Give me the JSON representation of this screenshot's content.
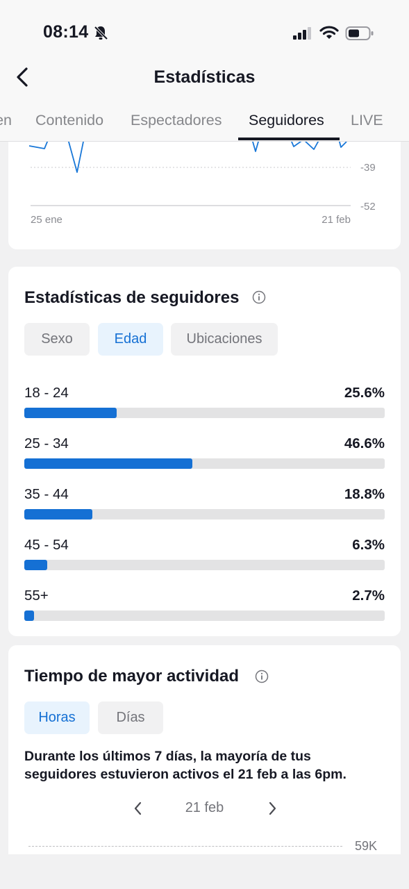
{
  "status_bar": {
    "time": "08:14"
  },
  "header": {
    "title": "Estadísticas"
  },
  "tabs": [
    {
      "label": "Resumen"
    },
    {
      "label": "Contenido"
    },
    {
      "label": "Espectadores"
    },
    {
      "label": "Seguidores",
      "active": true
    },
    {
      "label": "LIVE"
    }
  ],
  "trend_chart": {
    "y_ticks": [
      "-39",
      "-52"
    ],
    "x_start": "25 ene",
    "x_end": "21 feb"
  },
  "followers": {
    "title": "Estadísticas de seguidores",
    "filters": [
      {
        "label": "Sexo",
        "active": false
      },
      {
        "label": "Edad",
        "active": true
      },
      {
        "label": "Ubicaciones",
        "active": false
      }
    ],
    "age_groups": [
      {
        "label": "18 - 24",
        "pct_text": "25.6%",
        "value": 25.6
      },
      {
        "label": "25 - 34",
        "pct_text": "46.6%",
        "value": 46.6
      },
      {
        "label": "35 - 44",
        "pct_text": "18.8%",
        "value": 18.8
      },
      {
        "label": "45 - 54",
        "pct_text": "6.3%",
        "value": 6.3
      },
      {
        "label": "55+",
        "pct_text": "2.7%",
        "value": 2.7
      }
    ]
  },
  "activity": {
    "title": "Tiempo de mayor actividad",
    "filters": [
      {
        "label": "Horas",
        "active": true
      },
      {
        "label": "Días",
        "active": false
      }
    ],
    "summary": "Durante los últimos 7 días, la mayoría de tus seguidores estuvieron activos el 21 feb a las 6pm.",
    "date": "21 feb",
    "peak_label": "59K"
  },
  "colors": {
    "accent": "#1570d4",
    "chip_active_bg": "#e8f3fd",
    "bar_track": "#e3e3e4",
    "text_primary": "#161823",
    "text_secondary": "#73747a"
  }
}
